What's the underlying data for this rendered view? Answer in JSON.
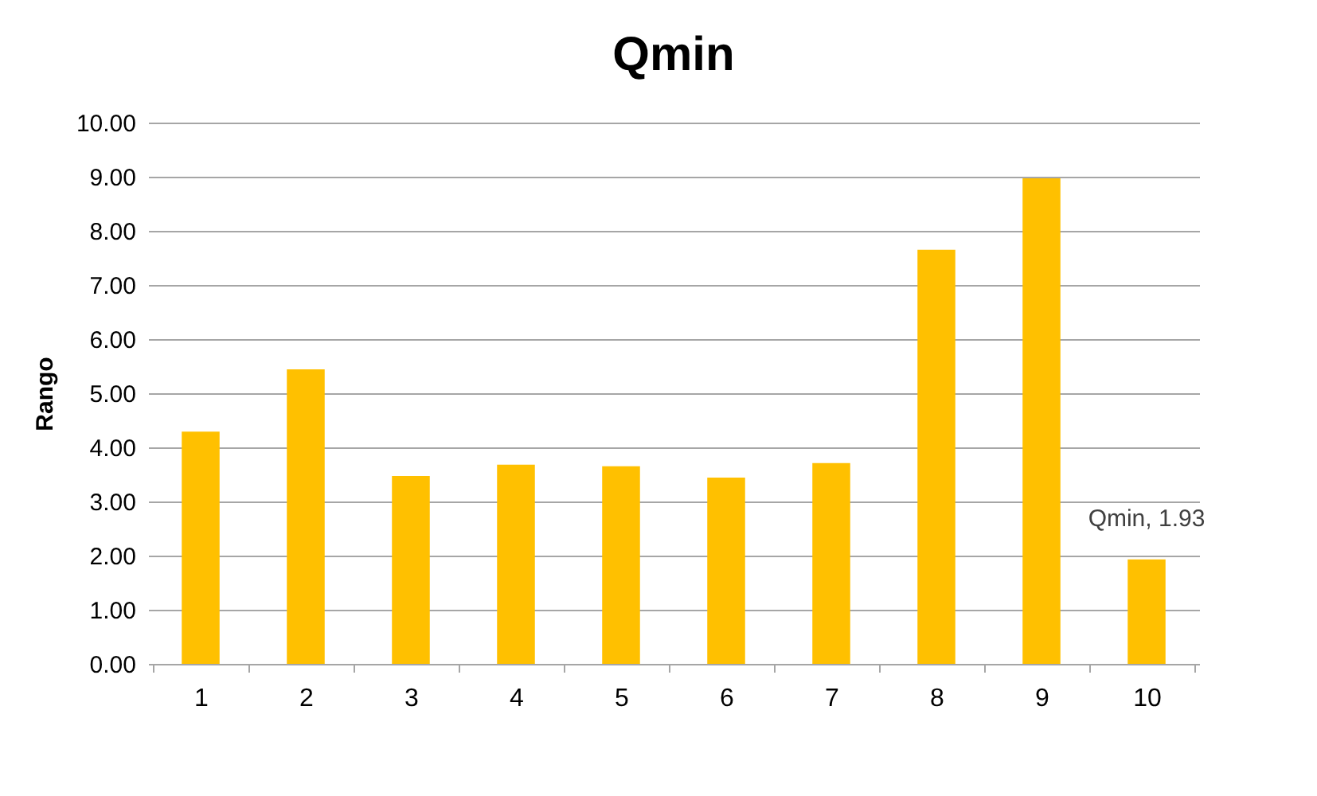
{
  "chart_data": {
    "type": "bar",
    "title": "Qmin",
    "ylabel": "Rango",
    "categories": [
      "1",
      "2",
      "3",
      "4",
      "5",
      "6",
      "7",
      "8",
      "9",
      "10"
    ],
    "values": [
      4.29,
      5.44,
      3.47,
      3.68,
      3.65,
      3.44,
      3.71,
      7.65,
      8.97,
      1.93
    ],
    "value_labels": [
      null,
      null,
      null,
      null,
      null,
      null,
      null,
      null,
      null,
      "Qmin, 1.93"
    ],
    "color": "#ffc000",
    "ylim": [
      0,
      10
    ],
    "yticks": [
      {
        "value": 0,
        "label": "0.00"
      },
      {
        "value": 1,
        "label": "1.00"
      },
      {
        "value": 2,
        "label": "2.00"
      },
      {
        "value": 3,
        "label": "3.00"
      },
      {
        "value": 4,
        "label": "4.00"
      },
      {
        "value": 5,
        "label": "5.00"
      },
      {
        "value": 6,
        "label": "6.00"
      },
      {
        "value": 7,
        "label": "7.00"
      },
      {
        "value": 8,
        "label": "8.00"
      },
      {
        "value": 9,
        "label": "9.00"
      },
      {
        "value": 10,
        "label": "10.00"
      }
    ],
    "grid": "y"
  }
}
